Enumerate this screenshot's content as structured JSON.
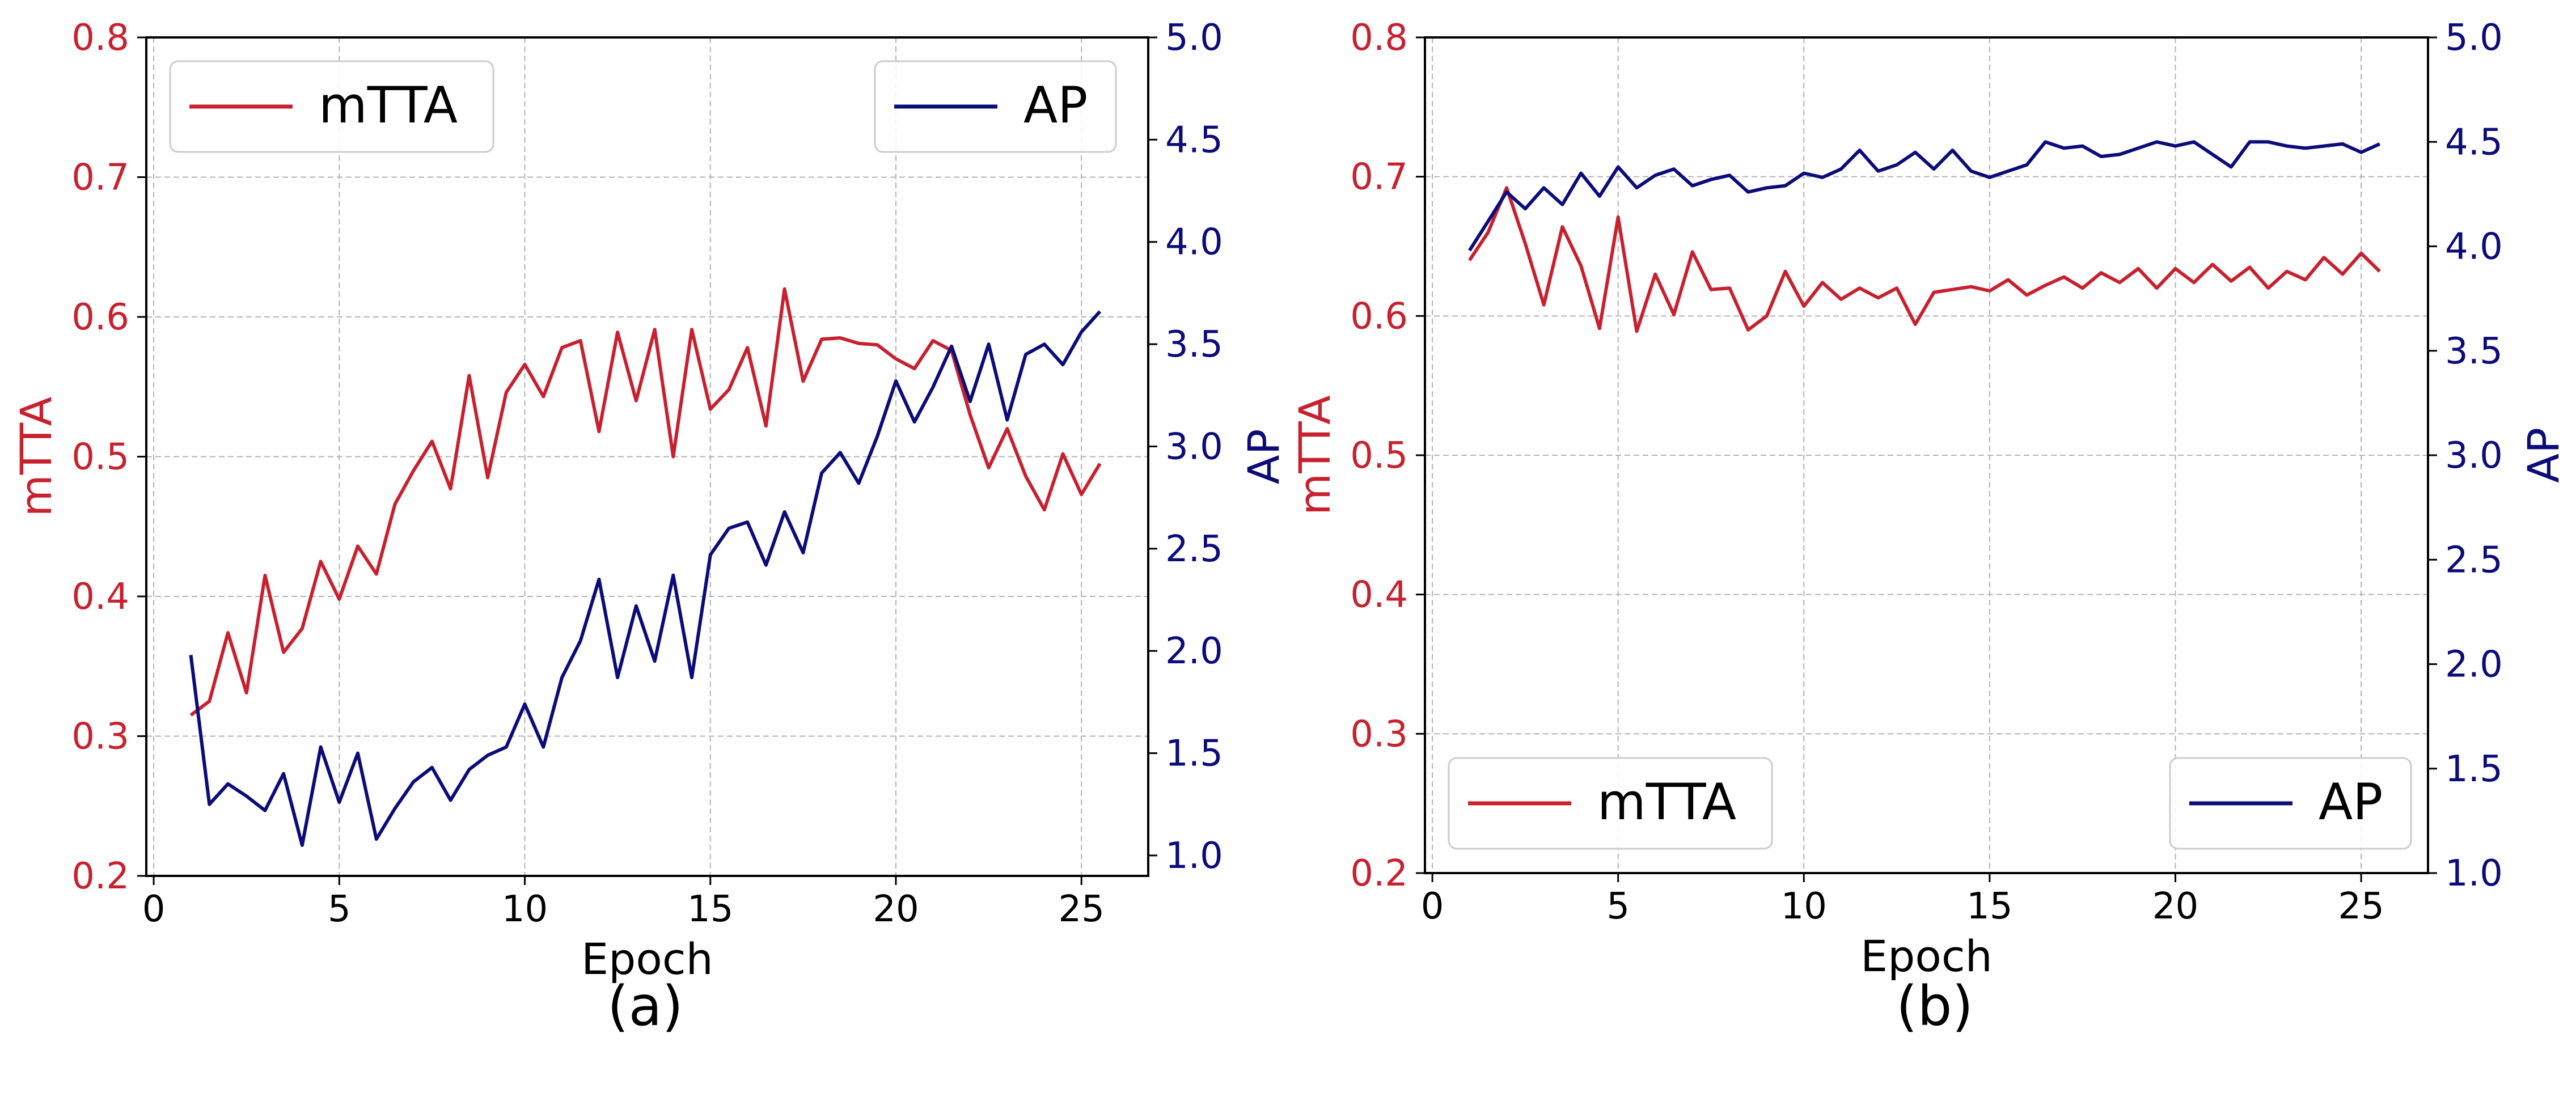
{
  "colors": {
    "mtta": "#c8202f",
    "ap": "#0b0b7a",
    "grid": "#b3b3b3",
    "axis": "#000000"
  },
  "chart_data": [
    {
      "id": "a",
      "panel_label": "(a)",
      "type": "line",
      "xlabel": "Epoch",
      "ylabel_left": "mTTA",
      "ylabel_right": "AP",
      "xlim": [
        -0.2,
        26.8
      ],
      "xticks": [
        0,
        5,
        10,
        15,
        20,
        25
      ],
      "ylim_left": [
        0.2,
        0.8
      ],
      "yticks_left": [
        "0.2",
        "0.3",
        "0.4",
        "0.5",
        "0.6",
        "0.7",
        "0.8"
      ],
      "ylim_right": [
        0.9,
        5.0
      ],
      "yticks_right": [
        "1.0",
        "1.5",
        "2.0",
        "2.5",
        "3.0",
        "3.5",
        "4.0",
        "4.5",
        "5.0"
      ],
      "grid": true,
      "legend_left": {
        "label": "mTTA",
        "placement": "top-left"
      },
      "legend_right": {
        "label": "AP",
        "placement": "top-right"
      },
      "x": [
        1,
        1.5,
        2,
        2.5,
        3,
        3.5,
        4,
        4.5,
        5,
        5.5,
        6,
        6.5,
        7,
        7.5,
        8,
        8.5,
        9,
        9.5,
        10,
        10.5,
        11,
        11.5,
        12,
        12.5,
        13,
        13.5,
        14,
        14.5,
        15,
        15.5,
        16,
        16.5,
        17,
        17.5,
        18,
        18.5,
        19,
        19.5,
        20,
        20.5,
        21,
        21.5,
        22,
        22.5,
        23,
        23.5,
        24,
        24.5,
        25,
        25.5
      ],
      "series": [
        {
          "name": "mTTA",
          "axis": "left",
          "values": [
            0.315,
            0.325,
            0.374,
            0.331,
            0.415,
            0.36,
            0.377,
            0.425,
            0.398,
            0.436,
            0.416,
            0.466,
            0.49,
            0.511,
            0.477,
            0.558,
            0.485,
            0.546,
            0.566,
            0.543,
            0.578,
            0.583,
            0.518,
            0.589,
            0.54,
            0.591,
            0.5,
            0.591,
            0.534,
            0.548,
            0.578,
            0.522,
            0.62,
            0.554,
            0.584,
            0.585,
            0.581,
            0.58,
            0.57,
            0.563,
            0.583,
            0.576,
            0.53,
            0.492,
            0.52,
            0.486,
            0.462,
            0.502,
            0.473,
            0.495
          ]
        },
        {
          "name": "AP",
          "axis": "right",
          "values": [
            1.98,
            1.25,
            1.35,
            1.29,
            1.22,
            1.4,
            1.05,
            1.53,
            1.26,
            1.5,
            1.08,
            1.23,
            1.36,
            1.43,
            1.27,
            1.42,
            1.49,
            1.53,
            1.74,
            1.53,
            1.87,
            2.05,
            2.35,
            1.87,
            2.22,
            1.95,
            2.37,
            1.87,
            2.47,
            2.6,
            2.63,
            2.42,
            2.68,
            2.48,
            2.87,
            2.97,
            2.82,
            3.05,
            3.32,
            3.12,
            3.29,
            3.49,
            3.22,
            3.5,
            3.13,
            3.45,
            3.5,
            3.4,
            3.56,
            3.66
          ]
        }
      ]
    },
    {
      "id": "b",
      "panel_label": "(b)",
      "type": "line",
      "xlabel": "Epoch",
      "ylabel_left": "mTTA",
      "ylabel_right": "AP",
      "xlim": [
        -0.2,
        26.8
      ],
      "xticks": [
        0,
        5,
        10,
        15,
        20,
        25
      ],
      "ylim_left": [
        0.2,
        0.8
      ],
      "yticks_left": [
        "0.2",
        "0.3",
        "0.4",
        "0.5",
        "0.6",
        "0.7",
        "0.8"
      ],
      "ylim_right": [
        1.0,
        5.0
      ],
      "yticks_right": [
        "1.0",
        "1.5",
        "2.0",
        "2.5",
        "3.0",
        "3.5",
        "4.0",
        "4.5",
        "5.0"
      ],
      "grid": true,
      "legend_left": {
        "label": "mTTA",
        "placement": "bottom-left"
      },
      "legend_right": {
        "label": "AP",
        "placement": "bottom-right"
      },
      "x": [
        1,
        1.5,
        2,
        2.5,
        3,
        3.5,
        4,
        4.5,
        5,
        5.5,
        6,
        6.5,
        7,
        7.5,
        8,
        8.5,
        9,
        9.5,
        10,
        10.5,
        11,
        11.5,
        12,
        12.5,
        13,
        13.5,
        14,
        14.5,
        15,
        15.5,
        16,
        16.5,
        17,
        17.5,
        18,
        18.5,
        19,
        19.5,
        20,
        20.5,
        21,
        21.5,
        22,
        22.5,
        23,
        23.5,
        24,
        24.5,
        25,
        25.5
      ],
      "series": [
        {
          "name": "mTTA",
          "axis": "left",
          "values": [
            0.64,
            0.66,
            0.692,
            0.652,
            0.608,
            0.664,
            0.636,
            0.591,
            0.671,
            0.589,
            0.63,
            0.601,
            0.646,
            0.619,
            0.62,
            0.59,
            0.6,
            0.632,
            0.607,
            0.624,
            0.612,
            0.62,
            0.613,
            0.62,
            0.594,
            0.617,
            0.619,
            0.621,
            0.618,
            0.626,
            0.615,
            0.622,
            0.628,
            0.62,
            0.631,
            0.624,
            0.634,
            0.62,
            0.634,
            0.624,
            0.637,
            0.625,
            0.635,
            0.62,
            0.632,
            0.626,
            0.642,
            0.63,
            0.645,
            0.632
          ]
        },
        {
          "name": "AP",
          "axis": "right",
          "values": [
            3.98,
            4.12,
            4.26,
            4.18,
            4.28,
            4.2,
            4.35,
            4.24,
            4.38,
            4.28,
            4.34,
            4.37,
            4.29,
            4.32,
            4.34,
            4.26,
            4.28,
            4.29,
            4.35,
            4.33,
            4.37,
            4.46,
            4.36,
            4.39,
            4.45,
            4.37,
            4.46,
            4.36,
            4.33,
            4.36,
            4.39,
            4.5,
            4.47,
            4.48,
            4.43,
            4.44,
            4.47,
            4.5,
            4.48,
            4.5,
            4.44,
            4.38,
            4.5,
            4.5,
            4.48,
            4.47,
            4.48,
            4.49,
            4.45,
            4.49
          ]
        }
      ]
    }
  ]
}
